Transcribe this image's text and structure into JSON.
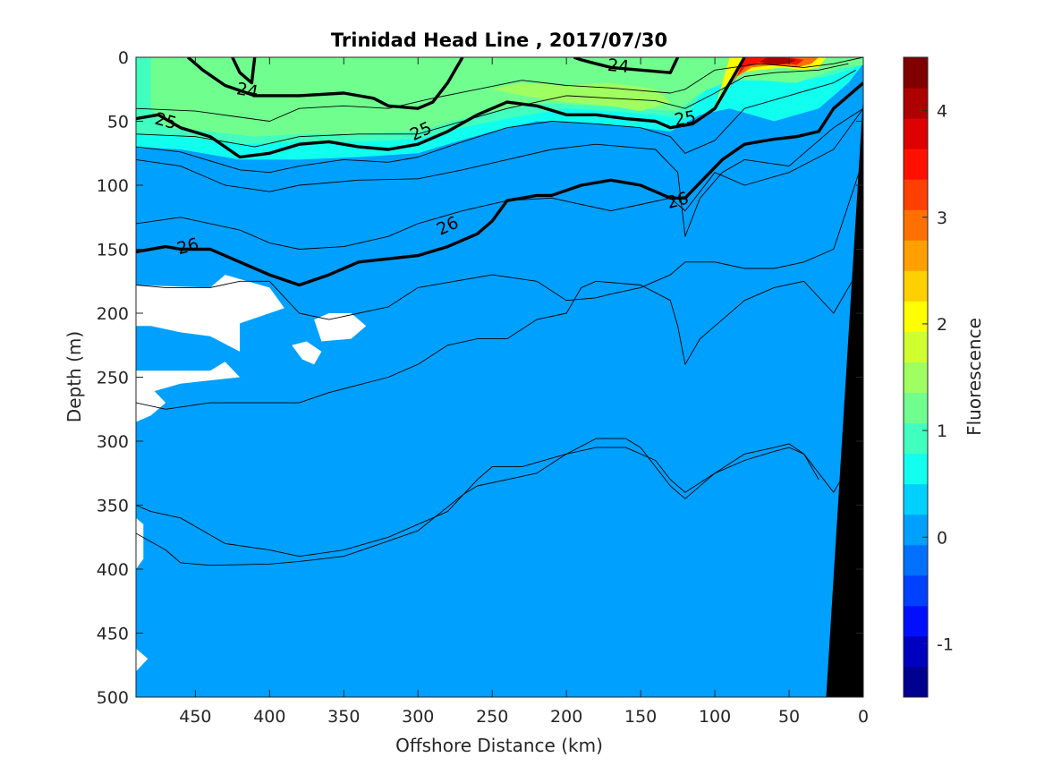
{
  "chart_data": {
    "type": "heatmap",
    "title": "Trinidad Head Line , 2017/07/30",
    "xlabel": "Offshore Distance (km)",
    "ylabel": "Depth (m)",
    "xlim": [
      490,
      0
    ],
    "ylim": [
      0,
      500
    ],
    "x_reversed": true,
    "y_reversed": true,
    "x_ticks": [
      450,
      400,
      350,
      300,
      250,
      200,
      150,
      100,
      50,
      0
    ],
    "y_ticks": [
      0,
      50,
      100,
      150,
      200,
      250,
      300,
      350,
      400,
      450,
      500
    ],
    "colorbar": {
      "label": "Fluorescence",
      "range": [
        -1.5,
        4.5
      ],
      "ticks": [
        4,
        3,
        2,
        1,
        0,
        -1
      ],
      "colormap": "jet",
      "colors": [
        "#00008f",
        "#0000bf",
        "#0010ff",
        "#0040ff",
        "#0070ff",
        "#00a0ff",
        "#00d0ff",
        "#10ffef",
        "#40ffbf",
        "#70ff8f",
        "#a0ff60",
        "#d0ff30",
        "#ffff00",
        "#ffd000",
        "#ffa000",
        "#ff7000",
        "#ff4000",
        "#ff1000",
        "#df0000",
        "#af0000",
        "#800000"
      ]
    },
    "background_value": 0,
    "field_patches": [
      {
        "x": [
          490,
          460,
          420,
          380,
          340,
          300,
          280,
          250,
          220,
          180,
          150,
          130,
          110,
          90,
          60,
          30,
          10,
          0,
          0,
          490
        ],
        "y": [
          70,
          72,
          80,
          80,
          78,
          75,
          68,
          58,
          50,
          52,
          55,
          58,
          45,
          40,
          50,
          40,
          20,
          5,
          0,
          0
        ],
        "value": 0.5
      },
      {
        "x": [
          490,
          460,
          420,
          380,
          340,
          300,
          270,
          240,
          200,
          170,
          140,
          120,
          110,
          100,
          80,
          50,
          25,
          10,
          0,
          0,
          490
        ],
        "y": [
          60,
          62,
          68,
          66,
          66,
          64,
          55,
          48,
          40,
          42,
          45,
          48,
          30,
          20,
          15,
          20,
          15,
          10,
          5,
          0,
          0
        ],
        "value": 0.8
      },
      {
        "x": [
          470,
          440,
          410,
          380,
          340,
          300,
          270,
          240,
          210,
          180,
          150,
          125,
          110,
          90,
          70,
          45,
          25,
          15,
          0,
          0,
          480,
          480
        ],
        "y": [
          55,
          58,
          62,
          60,
          60,
          58,
          48,
          40,
          36,
          38,
          40,
          42,
          28,
          18,
          18,
          20,
          12,
          8,
          6,
          0,
          0,
          40
        ],
        "value": 1.1
      },
      {
        "x": [
          230,
          200,
          170,
          150,
          130,
          140,
          170,
          200,
          230,
          250
        ],
        "y": [
          30,
          35,
          38,
          42,
          35,
          25,
          20,
          22,
          20,
          25
        ],
        "value": 1.5
      },
      {
        "x": [
          100,
          95,
          85,
          70,
          55,
          40,
          30,
          25,
          35,
          55,
          75,
          90
        ],
        "y": [
          40,
          25,
          12,
          10,
          8,
          10,
          8,
          0,
          0,
          0,
          0,
          0
        ],
        "value": 2.2
      },
      {
        "x": [
          90,
          85,
          75,
          60,
          45,
          35,
          30,
          40,
          60,
          80
        ],
        "y": [
          25,
          15,
          8,
          6,
          8,
          5,
          0,
          0,
          0,
          0
        ],
        "value": 2.8
      },
      {
        "x": [
          85,
          80,
          70,
          55,
          45,
          40,
          50,
          65,
          80
        ],
        "y": [
          15,
          8,
          4,
          4,
          6,
          2,
          0,
          0,
          0
        ],
        "value": 3.5
      },
      {
        "x": [
          70,
          60,
          50,
          45,
          55,
          65
        ],
        "y": [
          4,
          6,
          5,
          2,
          0,
          0
        ],
        "value": 4.0
      },
      {
        "x": [
          490,
          460,
          430,
          400,
          370,
          340,
          320,
          300,
          300,
          330,
          360,
          400,
          440,
          470,
          490
        ],
        "y": [
          100,
          105,
          115,
          120,
          118,
          112,
          108,
          100,
          90,
          85,
          90,
          92,
          88,
          85,
          85
        ],
        "value": 0.2
      }
    ],
    "missing_regions": [
      {
        "x": [
          490,
          440,
          430,
          400,
          390,
          400,
          420,
          420,
          440,
          460,
          480,
          490
        ],
        "y": [
          178,
          180,
          170,
          180,
          196,
          200,
          208,
          230,
          218,
          215,
          210,
          210
        ]
      },
      {
        "x": [
          490,
          440,
          430,
          420,
          460,
          490
        ],
        "y": [
          245,
          245,
          238,
          250,
          255,
          265
        ]
      },
      {
        "x": [
          490,
          480,
          470,
          480,
          490
        ],
        "y": [
          262,
          258,
          270,
          280,
          285
        ]
      },
      {
        "x": [
          370,
          360,
          345,
          335,
          345,
          365
        ],
        "y": [
          205,
          200,
          200,
          210,
          220,
          222
        ]
      },
      {
        "x": [
          385,
          375,
          365,
          370,
          378
        ],
        "y": [
          225,
          222,
          230,
          240,
          236
        ]
      },
      {
        "x": [
          490,
          485,
          485,
          490
        ],
        "y": [
          360,
          365,
          392,
          400
        ]
      },
      {
        "x": [
          490,
          482,
          490
        ],
        "y": [
          462,
          470,
          480
        ]
      }
    ],
    "seafloor": {
      "x": [
        0,
        0,
        25,
        0
      ],
      "y": [
        0,
        500,
        500,
        30
      ],
      "color": "#000000"
    },
    "contours": [
      {
        "level": 24,
        "bold": true,
        "x": [
          455,
          445,
          430,
          410,
          380,
          350,
          330,
          320,
          300,
          290,
          280,
          270
        ],
        "y": [
          0,
          10,
          22,
          30,
          30,
          28,
          32,
          38,
          40,
          35,
          20,
          0
        ]
      },
      {
        "level": 24,
        "bold": true,
        "x": [
          195,
          190,
          180,
          170,
          150,
          130,
          125
        ],
        "y": [
          0,
          2,
          5,
          8,
          10,
          12,
          0
        ]
      },
      {
        "level": 24,
        "bold": true,
        "x": [
          425,
          420,
          412,
          410
        ],
        "y": [
          0,
          12,
          20,
          0
        ]
      },
      {
        "level": 25,
        "bold": true,
        "x": [
          490,
          475,
          460,
          440,
          420,
          400,
          380,
          360,
          340,
          320,
          300,
          280,
          260,
          240,
          220,
          200,
          180,
          160,
          140,
          130,
          115,
          100,
          90
        ],
        "y": [
          48,
          45,
          55,
          62,
          78,
          75,
          68,
          66,
          70,
          72,
          68,
          58,
          45,
          35,
          38,
          45,
          45,
          48,
          50,
          55,
          52,
          40,
          20
        ]
      },
      {
        "level": 25,
        "bold": true,
        "x": [
          90,
          85,
          80
        ],
        "y": [
          20,
          10,
          0
        ]
      },
      {
        "level": 26,
        "bold": true,
        "x": [
          490,
          470,
          460,
          440,
          420,
          400,
          380,
          360,
          340,
          300,
          280,
          260,
          250,
          240,
          220,
          210,
          190,
          170,
          150,
          130,
          120,
          110,
          95,
          80,
          60,
          45,
          30,
          20,
          10,
          0
        ],
        "y": [
          152,
          148,
          150,
          150,
          160,
          170,
          178,
          170,
          160,
          155,
          148,
          138,
          128,
          112,
          108,
          108,
          100,
          96,
          100,
          110,
          110,
          98,
          80,
          68,
          64,
          62,
          58,
          40,
          30,
          20
        ]
      },
      {
        "level": 0,
        "bold": false,
        "x": [
          490,
          450,
          400,
          380,
          350,
          320,
          290,
          260,
          230,
          200,
          170,
          150,
          130,
          120,
          100,
          70,
          40,
          20,
          0
        ],
        "y": [
          40,
          42,
          50,
          40,
          38,
          40,
          32,
          25,
          18,
          22,
          24,
          26,
          28,
          25,
          10,
          5,
          8,
          5,
          0
        ]
      },
      {
        "level": 0,
        "bold": false,
        "x": [
          490,
          450,
          410,
          380,
          340,
          300,
          270,
          240,
          200,
          170,
          140,
          120,
          100,
          80,
          60,
          30,
          10
        ],
        "y": [
          60,
          62,
          70,
          62,
          60,
          60,
          50,
          40,
          30,
          32,
          34,
          40,
          28,
          15,
          12,
          10,
          5
        ]
      },
      {
        "level": 0,
        "bold": false,
        "x": [
          490,
          460,
          420,
          400,
          380,
          350,
          320,
          300,
          270,
          240,
          210,
          180,
          150,
          130,
          120,
          100,
          80,
          50,
          20,
          5
        ],
        "y": [
          70,
          74,
          88,
          90,
          85,
          80,
          82,
          78,
          66,
          55,
          50,
          52,
          55,
          62,
          75,
          65,
          40,
          30,
          20,
          10
        ]
      },
      {
        "level": 0,
        "bold": false,
        "x": [
          490,
          460,
          430,
          400,
          380,
          340,
          300,
          270,
          240,
          210,
          180,
          160,
          140,
          125,
          120,
          110,
          95,
          80,
          50,
          20,
          0
        ],
        "y": [
          80,
          85,
          100,
          105,
          100,
          96,
          95,
          88,
          80,
          72,
          68,
          70,
          72,
          90,
          140,
          110,
          90,
          80,
          85,
          55,
          40
        ]
      },
      {
        "level": 0,
        "bold": false,
        "x": [
          490,
          460,
          420,
          400,
          380,
          350,
          320,
          300,
          270,
          240,
          210,
          190,
          170,
          150,
          130,
          120,
          100,
          80,
          50,
          20,
          0
        ],
        "y": [
          130,
          125,
          135,
          145,
          150,
          148,
          140,
          130,
          120,
          112,
          110,
          115,
          120,
          115,
          110,
          120,
          90,
          100,
          90,
          72,
          40
        ]
      },
      {
        "level": 0,
        "bold": false,
        "x": [
          490,
          470,
          440,
          420,
          400,
          380,
          360,
          320,
          300,
          250,
          220,
          200,
          180,
          170,
          150,
          130,
          120,
          100,
          80,
          60,
          40,
          20,
          0
        ],
        "y": [
          178,
          180,
          180,
          175,
          175,
          200,
          205,
          195,
          180,
          170,
          175,
          190,
          188,
          185,
          180,
          170,
          160,
          160,
          165,
          165,
          160,
          150,
          80
        ]
      },
      {
        "level": 0,
        "bold": false,
        "x": [
          490,
          470,
          440,
          410,
          380,
          360,
          320,
          300,
          280,
          260,
          240,
          220,
          200,
          190,
          180,
          150,
          130,
          125,
          120,
          110,
          100,
          80,
          60,
          40,
          20,
          0
        ],
        "y": [
          270,
          275,
          270,
          270,
          270,
          262,
          250,
          240,
          225,
          220,
          220,
          205,
          200,
          180,
          175,
          178,
          190,
          210,
          240,
          220,
          210,
          190,
          180,
          175,
          200,
          160
        ]
      },
      {
        "level": 0,
        "bold": false,
        "x": [
          490,
          480,
          460,
          430,
          400,
          380,
          350,
          320,
          300,
          280,
          260,
          250,
          230,
          200,
          180,
          160,
          140,
          130,
          120,
          100,
          80,
          60,
          50,
          40,
          20,
          0
        ],
        "y": [
          350,
          355,
          360,
          380,
          385,
          390,
          385,
          375,
          365,
          355,
          330,
          320,
          320,
          310,
          305,
          305,
          315,
          330,
          340,
          325,
          315,
          308,
          305,
          310,
          340,
          300
        ]
      },
      {
        "level": 0,
        "bold": false,
        "x": [
          490,
          470,
          460,
          440,
          400,
          380,
          350,
          330,
          300,
          270,
          260,
          240,
          220,
          200,
          180,
          160,
          150,
          130,
          120,
          100,
          80,
          60,
          50,
          40,
          30
        ],
        "y": [
          372,
          385,
          395,
          397,
          396,
          394,
          390,
          382,
          370,
          342,
          335,
          330,
          325,
          310,
          298,
          298,
          305,
          335,
          345,
          325,
          310,
          305,
          302,
          310,
          330
        ]
      }
    ],
    "contour_labels": [
      {
        "text": "24",
        "x": 415,
        "y": 26,
        "angle": 10
      },
      {
        "text": "24",
        "x": 165,
        "y": 7,
        "angle": 5
      },
      {
        "text": "25",
        "x": 470,
        "y": 50,
        "angle": 15
      },
      {
        "text": "25",
        "x": 298,
        "y": 58,
        "angle": -25
      },
      {
        "text": "25",
        "x": 120,
        "y": 48,
        "angle": -10
      },
      {
        "text": "26",
        "x": 455,
        "y": 148,
        "angle": -15
      },
      {
        "text": "26",
        "x": 280,
        "y": 132,
        "angle": -25
      },
      {
        "text": "26",
        "x": 125,
        "y": 112,
        "angle": -15
      }
    ]
  }
}
